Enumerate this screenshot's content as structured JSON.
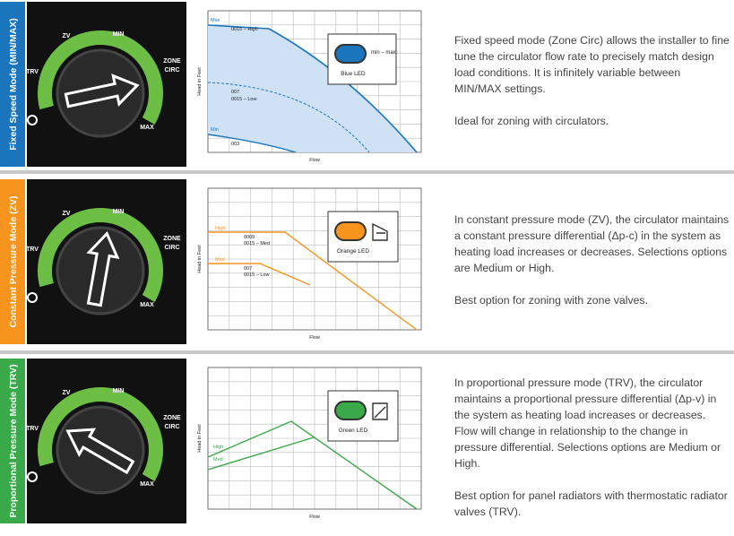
{
  "sections": [
    {
      "mode_label": "Fixed Speed Mode (MIN/MAX)",
      "dial_labels": [
        "ZV",
        "MIN",
        "TRV",
        "ZONE",
        "CIRC",
        "MAX"
      ],
      "chart": {
        "y_label": "Head in Feet",
        "x_label": "Flow",
        "legend": "Blue LED",
        "legend_note": "min – max",
        "curve_labels": [
          "Max",
          "0015 – High",
          "007",
          "0015 – Low",
          "Min",
          "003"
        ]
      },
      "paragraphs": [
        "Fixed speed mode (Zone Circ) allows the installer to fine tune the circulator flow rate to precisely match design load conditions. It is infinitely variable between MIN/MAX settings.",
        "Ideal for zoning with circulators."
      ]
    },
    {
      "mode_label": "Constant Pressure Mode (ZV)",
      "dial_labels": [
        "ZV",
        "MIN",
        "TRV",
        "ZONE",
        "CIRC",
        "MAX"
      ],
      "chart": {
        "y_label": "Head in Feet",
        "x_label": "Flow",
        "legend": "Orange LED",
        "curve_labels": [
          "High",
          "0009",
          "0015 – Med",
          "Med",
          "007",
          "0015 – Low"
        ]
      },
      "paragraphs": [
        "In constant pressure mode (ZV), the circulator maintains a constant pressure differential (Δp-c) in the system as heating load increases or decreases. Selections options are Medium or High.",
        "Best option for zoning with zone valves."
      ]
    },
    {
      "mode_label": "Proportional Pressure Mode (TRV)",
      "dial_labels": [
        "ZV",
        "MIN",
        "TRV",
        "ZONE",
        "CIRC",
        "MAX"
      ],
      "chart": {
        "y_label": "Head in Feet",
        "x_label": "Flow",
        "legend": "Green LED",
        "curve_labels": [
          "High",
          "Med"
        ]
      },
      "paragraphs": [
        "In proportional pressure mode (TRV), the circulator maintains a proportional pressure differential (Δp-v) in the system as heating load increases or decreases. Flow will change in relationship to the change in pressure differential. Selections options are Medium or High.",
        "Best option for panel radiators with thermostatic radiator valves (TRV)."
      ]
    }
  ]
}
